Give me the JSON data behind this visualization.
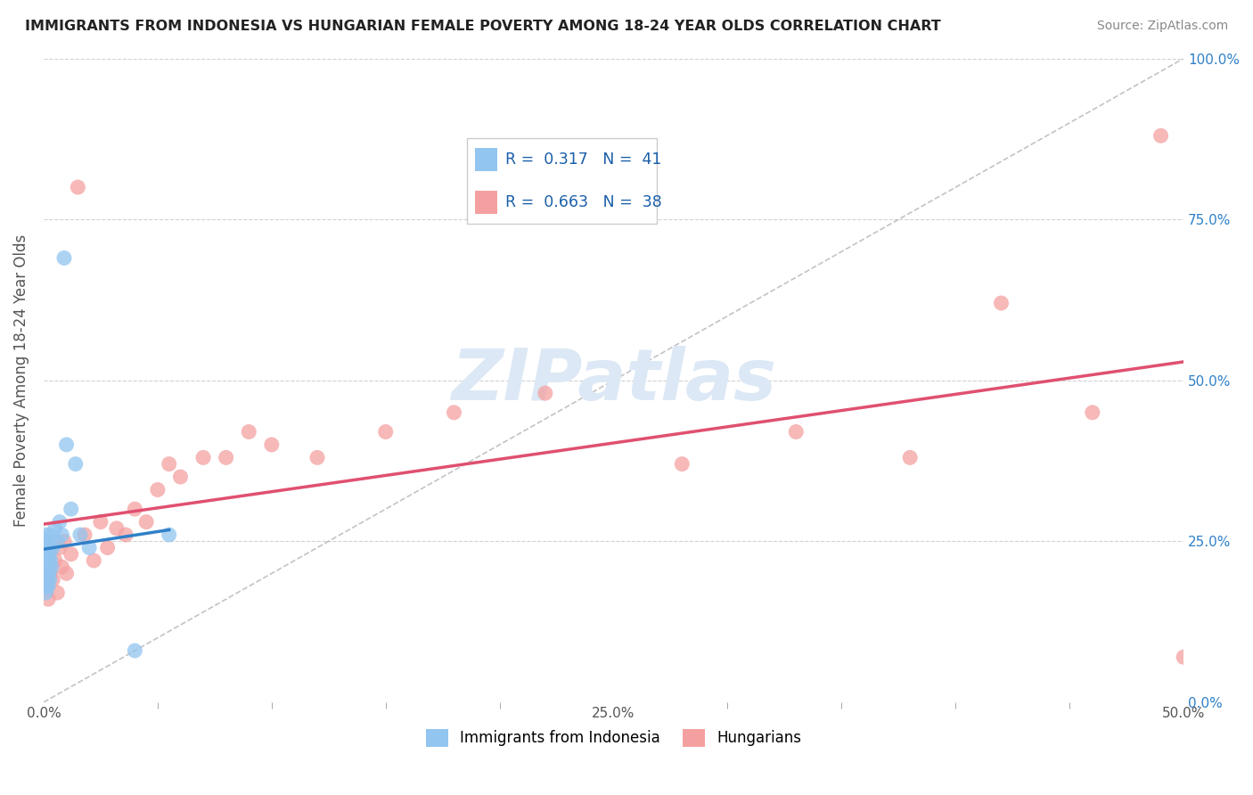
{
  "title": "IMMIGRANTS FROM INDONESIA VS HUNGARIAN FEMALE POVERTY AMONG 18-24 YEAR OLDS CORRELATION CHART",
  "source": "Source: ZipAtlas.com",
  "ylabel": "Female Poverty Among 18-24 Year Olds",
  "xlim": [
    0.0,
    0.5
  ],
  "ylim": [
    0.0,
    1.0
  ],
  "xtick_vals": [
    0.0,
    0.25,
    0.5
  ],
  "xtick_labels": [
    "0.0%",
    "25.0%",
    "50.0%"
  ],
  "ytick_vals": [
    0.0,
    0.25,
    0.5,
    0.75,
    1.0
  ],
  "ytick_labels": [
    "",
    "",
    "",
    "",
    ""
  ],
  "right_ytick_vals": [
    0.0,
    0.25,
    0.5,
    0.75,
    1.0
  ],
  "right_ytick_labels": [
    "0.0%",
    "25.0%",
    "50.0%",
    "75.0%",
    "100.0%"
  ],
  "series1_label": "Immigrants from Indonesia",
  "series1_color": "#92c5f0",
  "series1_R": 0.317,
  "series1_N": 41,
  "series2_label": "Hungarians",
  "series2_color": "#f5a0a0",
  "series2_R": 0.663,
  "series2_N": 38,
  "legend_R_color": "#1a5fa8",
  "scatter1_x": [
    0.0003,
    0.0004,
    0.0005,
    0.0006,
    0.0006,
    0.0007,
    0.0008,
    0.0009,
    0.001,
    0.0011,
    0.0012,
    0.0013,
    0.0014,
    0.0015,
    0.0016,
    0.0017,
    0.0018,
    0.0019,
    0.002,
    0.002,
    0.0022,
    0.0023,
    0.0024,
    0.0025,
    0.0026,
    0.003,
    0.003,
    0.0035,
    0.004,
    0.005,
    0.006,
    0.007,
    0.008,
    0.009,
    0.01,
    0.012,
    0.014,
    0.016,
    0.02,
    0.04,
    0.055
  ],
  "scatter1_y": [
    0.22,
    0.2,
    0.18,
    0.24,
    0.26,
    0.21,
    0.19,
    0.23,
    0.17,
    0.22,
    0.2,
    0.25,
    0.18,
    0.21,
    0.24,
    0.19,
    0.23,
    0.22,
    0.2,
    0.18,
    0.21,
    0.24,
    0.2,
    0.23,
    0.19,
    0.22,
    0.26,
    0.21,
    0.24,
    0.27,
    0.25,
    0.28,
    0.26,
    0.69,
    0.4,
    0.3,
    0.37,
    0.26,
    0.24,
    0.08,
    0.26
  ],
  "scatter2_x": [
    0.001,
    0.002,
    0.003,
    0.004,
    0.005,
    0.006,
    0.007,
    0.008,
    0.009,
    0.01,
    0.012,
    0.015,
    0.018,
    0.022,
    0.025,
    0.028,
    0.032,
    0.036,
    0.04,
    0.045,
    0.05,
    0.055,
    0.06,
    0.07,
    0.08,
    0.09,
    0.1,
    0.12,
    0.15,
    0.18,
    0.22,
    0.28,
    0.33,
    0.38,
    0.42,
    0.46,
    0.49,
    0.5
  ],
  "scatter2_y": [
    0.18,
    0.16,
    0.2,
    0.19,
    0.22,
    0.17,
    0.24,
    0.21,
    0.25,
    0.2,
    0.23,
    0.8,
    0.26,
    0.22,
    0.28,
    0.24,
    0.27,
    0.26,
    0.3,
    0.28,
    0.33,
    0.37,
    0.35,
    0.38,
    0.38,
    0.42,
    0.4,
    0.38,
    0.42,
    0.45,
    0.48,
    0.37,
    0.42,
    0.38,
    0.62,
    0.45,
    0.88,
    0.07
  ],
  "background_color": "#ffffff",
  "grid_color": "#cccccc",
  "watermark_text": "ZIPatlas",
  "watermark_color": "#dce8f5",
  "ref_line_color": "#aaaaaa",
  "regline1_color": "#3080c8",
  "regline2_color": "#e05070"
}
